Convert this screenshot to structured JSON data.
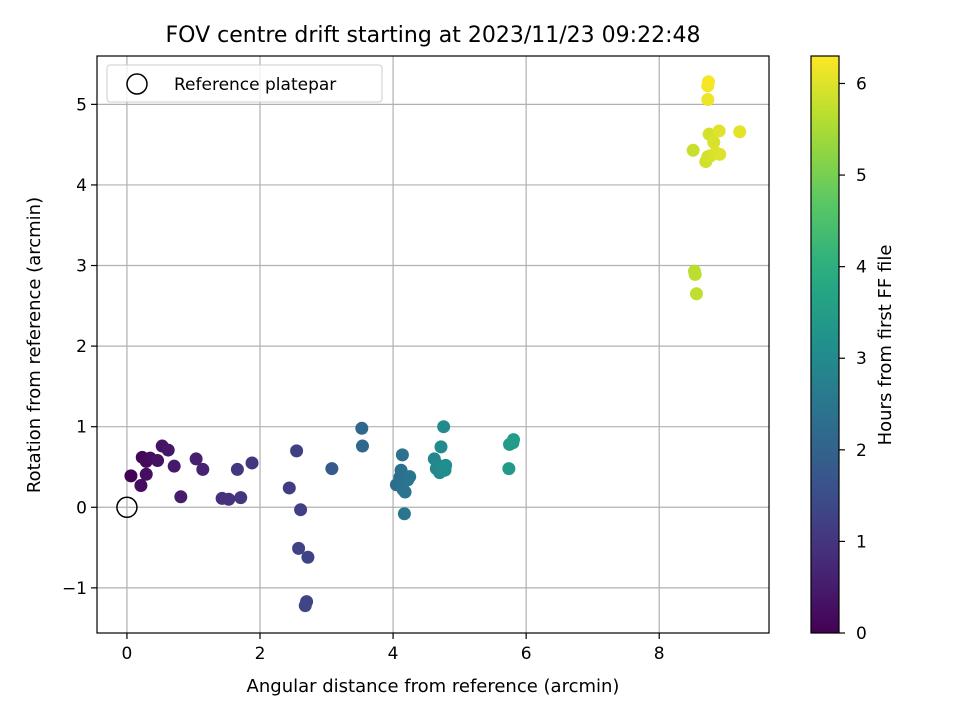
{
  "chart_data": {
    "type": "scatter",
    "title": "FOV centre drift starting at 2023/11/23 09:22:48",
    "xlabel": "Angular distance from reference (arcmin)",
    "ylabel": "Rotation from reference (arcmin)",
    "xlim": [
      -0.45,
      9.65
    ],
    "ylim": [
      -1.56,
      5.6
    ],
    "xticks": [
      0,
      2,
      4,
      6,
      8
    ],
    "xtick_labels": [
      "0",
      "2",
      "4",
      "6",
      "8"
    ],
    "yticks": [
      -1,
      0,
      1,
      2,
      3,
      4,
      5
    ],
    "ytick_labels": [
      "−1",
      "0",
      "1",
      "2",
      "3",
      "4",
      "5"
    ],
    "grid": true,
    "legend": {
      "placement": "top-left",
      "entries": [
        "Reference platepar"
      ]
    },
    "reference_point": {
      "name": "Reference platepar",
      "x": 0,
      "y": 0
    },
    "colorbar": {
      "label": "Hours from first FF file",
      "colormap": "viridis",
      "range": [
        0,
        6.3
      ],
      "ticks": [
        0,
        1,
        2,
        3,
        4,
        5,
        6
      ],
      "tick_labels": [
        "0",
        "1",
        "2",
        "3",
        "4",
        "5",
        "6"
      ]
    },
    "points": [
      {
        "x": 0.06,
        "y": 0.39,
        "c": 0.05
      },
      {
        "x": 0.23,
        "y": 0.62,
        "c": 0.1
      },
      {
        "x": 0.29,
        "y": 0.57,
        "c": 0.15
      },
      {
        "x": 0.35,
        "y": 0.61,
        "c": 0.2
      },
      {
        "x": 0.21,
        "y": 0.27,
        "c": 0.22
      },
      {
        "x": 0.29,
        "y": 0.41,
        "c": 0.25
      },
      {
        "x": 0.46,
        "y": 0.58,
        "c": 0.3
      },
      {
        "x": 0.53,
        "y": 0.76,
        "c": 0.35
      },
      {
        "x": 0.62,
        "y": 0.71,
        "c": 0.4
      },
      {
        "x": 0.71,
        "y": 0.51,
        "c": 0.45
      },
      {
        "x": 0.81,
        "y": 0.13,
        "c": 0.5
      },
      {
        "x": 1.04,
        "y": 0.6,
        "c": 0.55
      },
      {
        "x": 1.14,
        "y": 0.47,
        "c": 0.6
      },
      {
        "x": 1.43,
        "y": 0.11,
        "c": 0.85
      },
      {
        "x": 1.53,
        "y": 0.1,
        "c": 0.9
      },
      {
        "x": 1.71,
        "y": 0.12,
        "c": 0.95
      },
      {
        "x": 1.66,
        "y": 0.47,
        "c": 1.0
      },
      {
        "x": 1.88,
        "y": 0.55,
        "c": 1.05
      },
      {
        "x": 2.44,
        "y": 0.24,
        "c": 1.15
      },
      {
        "x": 2.55,
        "y": 0.7,
        "c": 1.2
      },
      {
        "x": 2.61,
        "y": -0.03,
        "c": 1.22
      },
      {
        "x": 2.58,
        "y": -0.51,
        "c": 1.25
      },
      {
        "x": 2.72,
        "y": -0.62,
        "c": 1.28
      },
      {
        "x": 2.7,
        "y": -1.17,
        "c": 1.3
      },
      {
        "x": 2.68,
        "y": -1.22,
        "c": 1.32
      },
      {
        "x": 3.08,
        "y": 0.48,
        "c": 1.8
      },
      {
        "x": 3.53,
        "y": 0.98,
        "c": 2.1
      },
      {
        "x": 3.54,
        "y": 0.76,
        "c": 2.15
      },
      {
        "x": 4.05,
        "y": 0.28,
        "c": 2.3
      },
      {
        "x": 4.1,
        "y": 0.37,
        "c": 2.32
      },
      {
        "x": 4.12,
        "y": 0.46,
        "c": 2.35
      },
      {
        "x": 4.14,
        "y": 0.65,
        "c": 2.37
      },
      {
        "x": 4.15,
        "y": 0.22,
        "c": 2.4
      },
      {
        "x": 4.18,
        "y": 0.19,
        "c": 2.42
      },
      {
        "x": 4.22,
        "y": 0.34,
        "c": 2.45
      },
      {
        "x": 4.25,
        "y": 0.38,
        "c": 2.47
      },
      {
        "x": 4.17,
        "y": -0.08,
        "c": 2.5
      },
      {
        "x": 4.62,
        "y": 0.6,
        "c": 2.9
      },
      {
        "x": 4.65,
        "y": 0.48,
        "c": 2.92
      },
      {
        "x": 4.68,
        "y": 0.52,
        "c": 2.95
      },
      {
        "x": 4.7,
        "y": 0.43,
        "c": 2.97
      },
      {
        "x": 4.72,
        "y": 0.75,
        "c": 3.0
      },
      {
        "x": 4.76,
        "y": 1.0,
        "c": 3.02
      },
      {
        "x": 4.78,
        "y": 0.46,
        "c": 3.05
      },
      {
        "x": 4.79,
        "y": 0.52,
        "c": 3.07
      },
      {
        "x": 5.74,
        "y": 0.48,
        "c": 3.4
      },
      {
        "x": 5.75,
        "y": 0.78,
        "c": 3.42
      },
      {
        "x": 5.8,
        "y": 0.8,
        "c": 3.45
      },
      {
        "x": 5.81,
        "y": 0.84,
        "c": 3.47
      },
      {
        "x": 8.53,
        "y": 2.93,
        "c": 5.65
      },
      {
        "x": 8.54,
        "y": 2.89,
        "c": 5.67
      },
      {
        "x": 8.56,
        "y": 2.65,
        "c": 5.7
      },
      {
        "x": 8.51,
        "y": 4.43,
        "c": 5.8
      },
      {
        "x": 8.7,
        "y": 4.29,
        "c": 5.85
      },
      {
        "x": 8.73,
        "y": 4.35,
        "c": 5.88
      },
      {
        "x": 8.75,
        "y": 4.63,
        "c": 5.9
      },
      {
        "x": 8.77,
        "y": 4.36,
        "c": 5.92
      },
      {
        "x": 8.82,
        "y": 4.53,
        "c": 5.95
      },
      {
        "x": 8.85,
        "y": 4.4,
        "c": 5.97
      },
      {
        "x": 8.91,
        "y": 4.38,
        "c": 6.0
      },
      {
        "x": 8.9,
        "y": 4.67,
        "c": 6.02
      },
      {
        "x": 9.21,
        "y": 4.66,
        "c": 6.05
      },
      {
        "x": 8.73,
        "y": 5.06,
        "c": 6.15
      },
      {
        "x": 8.73,
        "y": 5.23,
        "c": 6.2
      },
      {
        "x": 8.74,
        "y": 5.28,
        "c": 6.25
      }
    ]
  }
}
